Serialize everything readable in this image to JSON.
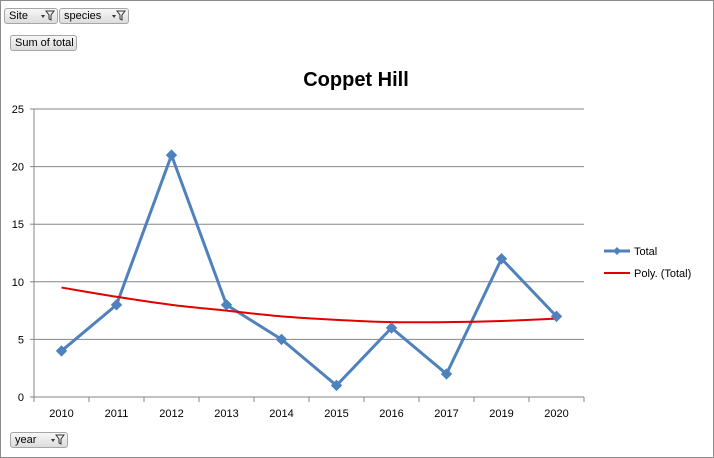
{
  "filters": {
    "site": {
      "label": "Site",
      "icon": "filter-dropdown-icon"
    },
    "species": {
      "label": "species",
      "icon": "filter-dropdown-icon"
    },
    "values_field": {
      "label": "Sum of total"
    },
    "year": {
      "label": "year",
      "icon": "filter-dropdown-icon"
    }
  },
  "colors": {
    "series": "#4f81bd",
    "trend": "#e00000",
    "grid": "#868686"
  },
  "chart_data": {
    "type": "line",
    "title": "Coppet Hill",
    "categories": [
      "2010",
      "2011",
      "2012",
      "2013",
      "2014",
      "2015",
      "2016",
      "2017",
      "2019",
      "2020"
    ],
    "series": [
      {
        "name": "Total",
        "values": [
          4,
          8,
          21,
          8,
          5,
          1,
          6,
          2,
          12,
          7
        ],
        "marker": "diamond"
      },
      {
        "name": "Poly. (Total)",
        "values": [
          9.5,
          8.7,
          8.0,
          7.5,
          7.0,
          6.7,
          6.5,
          6.5,
          6.6,
          6.8
        ],
        "trendline": "polynomial"
      }
    ],
    "ylim": [
      0,
      25
    ],
    "yticks": [
      "0",
      "5",
      "10",
      "15",
      "20",
      "25"
    ],
    "grid": true,
    "legend": "right"
  }
}
